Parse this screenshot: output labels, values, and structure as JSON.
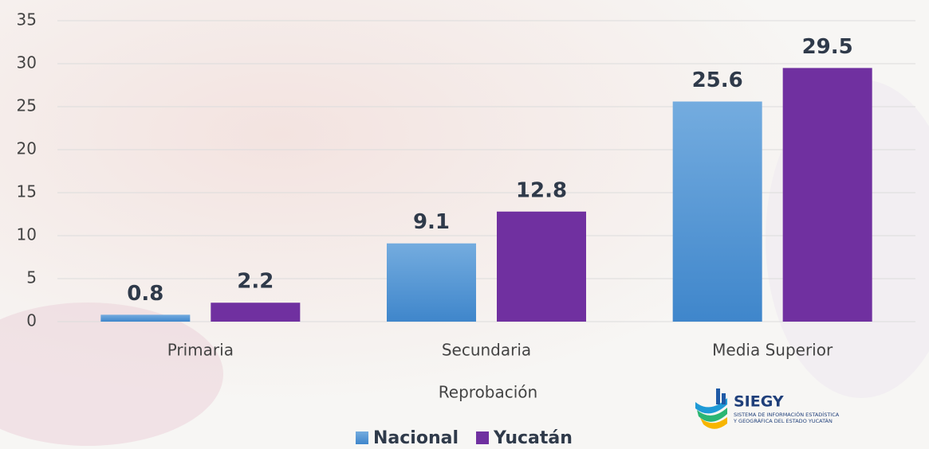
{
  "chart_data": {
    "type": "bar",
    "categories": [
      "Primaria",
      "Secundaria",
      "Media Superior"
    ],
    "xlabel": "Reprobación",
    "series": [
      {
        "name": "Nacional",
        "color": "#4a90d4",
        "values": [
          0.8,
          9.1,
          25.6
        ]
      },
      {
        "name": "Yucatán",
        "color": "#7030a0",
        "values": [
          2.2,
          12.8,
          29.5
        ]
      }
    ],
    "ylim": [
      0,
      35
    ],
    "yticks": [
      0,
      5,
      10,
      15,
      20,
      25,
      30,
      35
    ],
    "grid": true,
    "legend": "bottom"
  },
  "logo": {
    "name": "SIEGY",
    "line1": "SISTEMA DE INFORMACIÓN ESTADÍSTICA",
    "line2": "Y GEOGRÁFICA DEL ESTADO YUCATÁN"
  }
}
